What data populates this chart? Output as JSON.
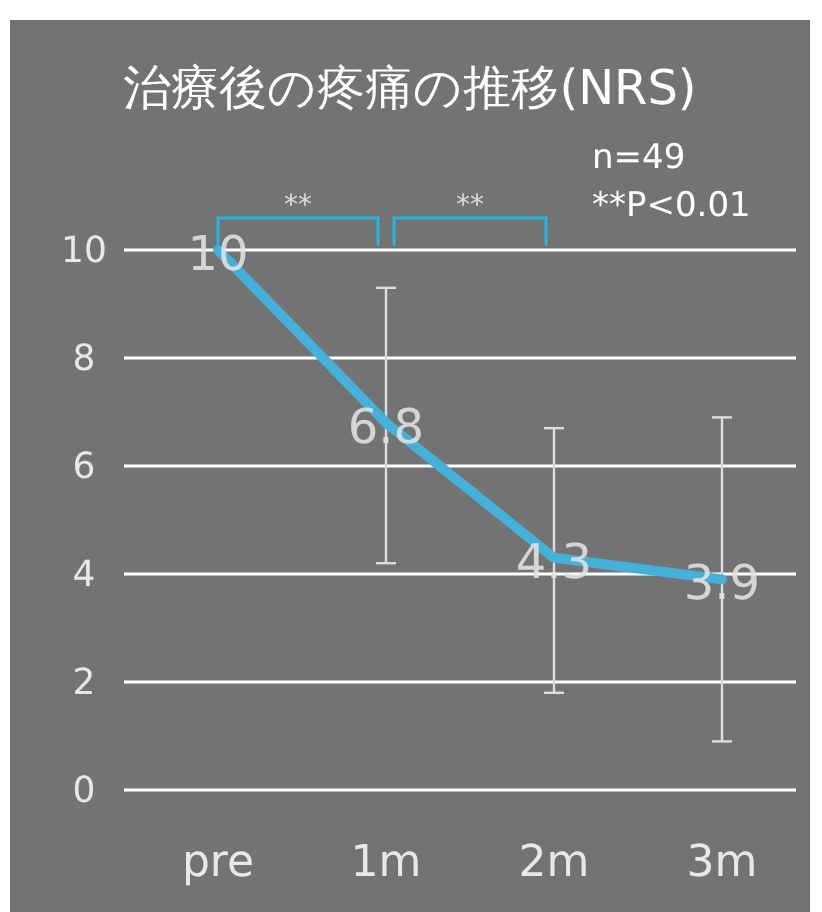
{
  "chart_data": {
    "type": "line",
    "title": "治療後の疼痛の推移(NRS)",
    "categories": [
      "pre",
      "1m",
      "2m",
      "3m"
    ],
    "series": [
      {
        "color": "#45b0d9",
        "values": [
          10,
          6.8,
          4.3,
          3.9
        ],
        "errors": [
          null,
          [
            4.2,
            9.3
          ],
          [
            1.8,
            6.7
          ],
          [
            0.9,
            6.9
          ]
        ]
      }
    ],
    "ylim": [
      0,
      10
    ],
    "yticks": [
      0,
      2,
      4,
      6,
      8,
      10
    ],
    "grid": "y",
    "marker": "none",
    "line_style": "solid",
    "data_labels": true,
    "annotations": [
      "n=49",
      "**P<0.01",
      "**",
      "**"
    ]
  }
}
